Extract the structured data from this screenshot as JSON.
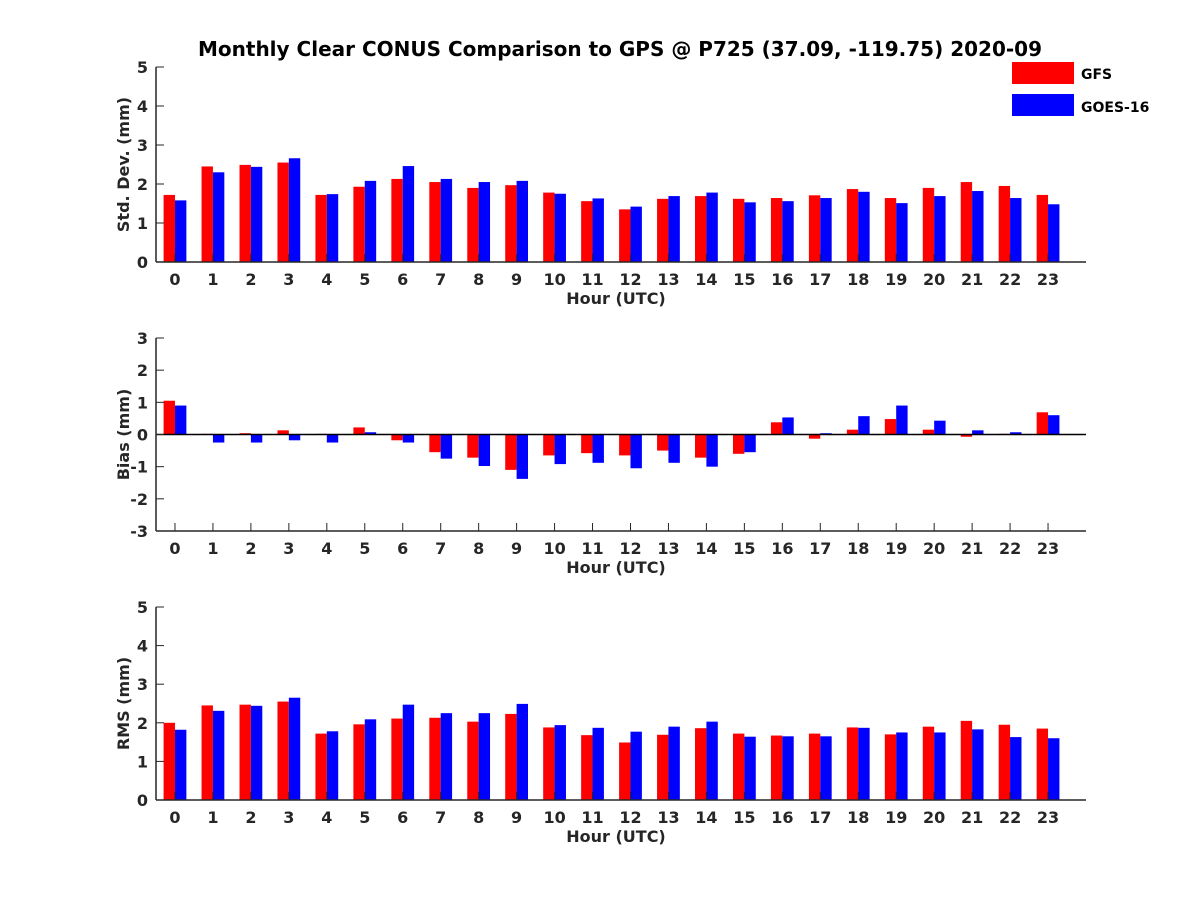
{
  "figure": {
    "title": "Monthly Clear CONUS Comparison to GPS @ P725 (37.09, -119.75) 2020-09"
  },
  "legend": {
    "entries": [
      {
        "label": "GFS",
        "color": "#ff0000"
      },
      {
        "label": "GOES-16",
        "color": "#0000ff"
      }
    ]
  },
  "chart_data": [
    {
      "type": "bar",
      "title": "Monthly Clear CONUS Comparison to GPS @ P725 (37.09, -119.75) 2020-09",
      "xlabel": "Hour (UTC)",
      "ylabel": "Std. Dev. (mm)",
      "ylim": [
        0,
        5
      ],
      "yticks": [
        0,
        1,
        2,
        3,
        4,
        5
      ],
      "categories": [
        "0",
        "1",
        "2",
        "3",
        "4",
        "5",
        "6",
        "7",
        "8",
        "9",
        "10",
        "11",
        "12",
        "13",
        "14",
        "15",
        "16",
        "17",
        "18",
        "19",
        "20",
        "21",
        "22",
        "23"
      ],
      "series": [
        {
          "name": "GFS",
          "color": "#ff0000",
          "values": [
            1.72,
            2.45,
            2.49,
            2.55,
            1.72,
            1.93,
            2.13,
            2.05,
            1.9,
            1.97,
            1.78,
            1.56,
            1.35,
            1.62,
            1.69,
            1.62,
            1.64,
            1.71,
            1.87,
            1.64,
            1.9,
            2.05,
            1.95,
            1.72
          ]
        },
        {
          "name": "GOES-16",
          "color": "#0000ff",
          "values": [
            1.58,
            2.3,
            2.44,
            2.66,
            1.74,
            2.08,
            2.46,
            2.13,
            2.05,
            2.08,
            1.75,
            1.63,
            1.42,
            1.69,
            1.78,
            1.53,
            1.56,
            1.64,
            1.8,
            1.51,
            1.69,
            1.82,
            1.64,
            1.48
          ]
        }
      ]
    },
    {
      "type": "bar",
      "xlabel": "Hour (UTC)",
      "ylabel": "Bias (mm)",
      "ylim": [
        -3,
        3
      ],
      "yticks": [
        -3,
        -2,
        -1,
        0,
        1,
        2,
        3
      ],
      "categories": [
        "0",
        "1",
        "2",
        "3",
        "4",
        "5",
        "6",
        "7",
        "8",
        "9",
        "10",
        "11",
        "12",
        "13",
        "14",
        "15",
        "16",
        "17",
        "18",
        "19",
        "20",
        "21",
        "22",
        "23"
      ],
      "series": [
        {
          "name": "GFS",
          "color": "#ff0000",
          "values": [
            1.05,
            0.02,
            0.04,
            0.13,
            0.02,
            0.22,
            -0.18,
            -0.55,
            -0.72,
            -1.1,
            -0.65,
            -0.58,
            -0.65,
            -0.5,
            -0.72,
            -0.6,
            0.38,
            -0.13,
            0.15,
            0.48,
            0.15,
            -0.07,
            0.02,
            0.69
          ]
        },
        {
          "name": "GOES-16",
          "color": "#0000ff",
          "values": [
            0.9,
            -0.25,
            -0.25,
            -0.18,
            -0.25,
            0.07,
            -0.25,
            -0.75,
            -0.98,
            -1.38,
            -0.92,
            -0.88,
            -1.05,
            -0.88,
            -1.0,
            -0.55,
            0.53,
            0.04,
            0.57,
            0.9,
            0.43,
            0.13,
            0.07,
            0.6
          ]
        }
      ]
    },
    {
      "type": "bar",
      "xlabel": "Hour (UTC)",
      "ylabel": "RMS (mm)",
      "ylim": [
        0,
        5
      ],
      "yticks": [
        0,
        1,
        2,
        3,
        4,
        5
      ],
      "categories": [
        "0",
        "1",
        "2",
        "3",
        "4",
        "5",
        "6",
        "7",
        "8",
        "9",
        "10",
        "11",
        "12",
        "13",
        "14",
        "15",
        "16",
        "17",
        "18",
        "19",
        "20",
        "21",
        "22",
        "23"
      ],
      "series": [
        {
          "name": "GFS",
          "color": "#ff0000",
          "values": [
            2.0,
            2.45,
            2.47,
            2.55,
            1.72,
            1.96,
            2.11,
            2.13,
            2.03,
            2.23,
            1.88,
            1.68,
            1.49,
            1.69,
            1.86,
            1.72,
            1.67,
            1.72,
            1.88,
            1.7,
            1.9,
            2.05,
            1.95,
            1.85
          ]
        },
        {
          "name": "GOES-16",
          "color": "#0000ff",
          "values": [
            1.82,
            2.31,
            2.44,
            2.65,
            1.78,
            2.09,
            2.47,
            2.25,
            2.25,
            2.49,
            1.94,
            1.87,
            1.77,
            1.9,
            2.03,
            1.64,
            1.65,
            1.65,
            1.87,
            1.75,
            1.75,
            1.83,
            1.63,
            1.6
          ]
        }
      ]
    }
  ]
}
